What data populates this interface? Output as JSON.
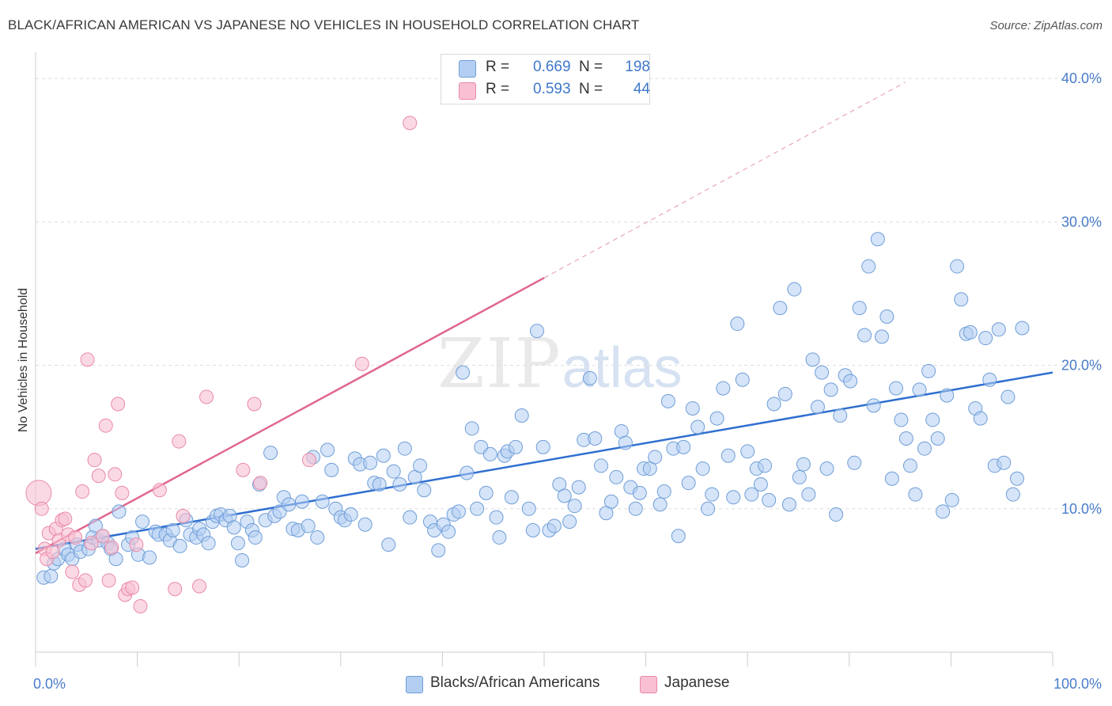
{
  "title": "BLACK/AFRICAN AMERICAN VS JAPANESE NO VEHICLES IN HOUSEHOLD CORRELATION CHART",
  "source": "Source: ZipAtlas.com",
  "watermark": {
    "left": "ZIP",
    "right": "atlas"
  },
  "legend": {
    "rows": [
      {
        "r_label": "R =",
        "r_value": "0.669",
        "n_label": "N =",
        "n_value": "198",
        "color": "#b3cef2"
      },
      {
        "r_label": "R =",
        "r_value": "0.593",
        "n_label": "N =",
        "n_value": "44",
        "color": "#f8c0d2"
      }
    ]
  },
  "bottom_legend": [
    {
      "label": "Blacks/African Americans",
      "color": "#b3cef2"
    },
    {
      "label": "Japanese",
      "color": "#f8c0d2"
    }
  ],
  "chart_data": {
    "type": "scatter",
    "ylabel": "No Vehicles in Household",
    "xlabel": "",
    "xlim": [
      0,
      100
    ],
    "ylim": [
      0,
      41.5
    ],
    "x_tick_labels": [
      {
        "value": 0,
        "label": "0.0%"
      },
      {
        "value": 100,
        "label": "100.0%"
      }
    ],
    "y_tick_labels": [
      {
        "value": 10,
        "label": "10.0%"
      },
      {
        "value": 20,
        "label": "20.0%"
      },
      {
        "value": 30,
        "label": "30.0%"
      },
      {
        "value": 40,
        "label": "40.0%"
      }
    ],
    "grid": "horizontal dashed",
    "colors": {
      "blue_fill": "#b3cef2",
      "blue_stroke": "#6f9ed8",
      "blue_line": "#2f6fd0",
      "pink_fill": "#f8c0d2",
      "pink_stroke": "#e98aa8",
      "pink_line": "#e0668f"
    },
    "series": [
      {
        "name": "Blacks/African Americans",
        "trend": {
          "x0": 0,
          "y0": 7.2,
          "x1": 100,
          "y1": 19.5
        },
        "points": [
          [
            0.8,
            5.2
          ],
          [
            1.5,
            5.3
          ],
          [
            1.8,
            6.2
          ],
          [
            2.2,
            6.5
          ],
          [
            2.8,
            7.2
          ],
          [
            3.2,
            6.8
          ],
          [
            3.6,
            6.5
          ],
          [
            4.1,
            7.5
          ],
          [
            4.4,
            7.0
          ],
          [
            5.2,
            7.2
          ],
          [
            5.6,
            8.0
          ],
          [
            5.9,
            8.8
          ],
          [
            6.2,
            7.8
          ],
          [
            6.6,
            8.1
          ],
          [
            7.1,
            7.6
          ],
          [
            7.4,
            7.2
          ],
          [
            7.9,
            6.5
          ],
          [
            8.2,
            9.8
          ],
          [
            9.1,
            7.5
          ],
          [
            9.5,
            8.0
          ],
          [
            10.1,
            6.8
          ],
          [
            10.5,
            9.1
          ],
          [
            11.2,
            6.6
          ],
          [
            11.8,
            8.4
          ],
          [
            12.1,
            8.2
          ],
          [
            12.8,
            8.2
          ],
          [
            13.2,
            7.8
          ],
          [
            13.5,
            8.5
          ],
          [
            14.2,
            7.4
          ],
          [
            14.8,
            9.2
          ],
          [
            15.2,
            8.2
          ],
          [
            15.8,
            8.0
          ],
          [
            16.1,
            8.6
          ],
          [
            16.5,
            8.2
          ],
          [
            17.0,
            7.6
          ],
          [
            17.4,
            9.1
          ],
          [
            17.8,
            9.5
          ],
          [
            18.2,
            9.6
          ],
          [
            18.7,
            9.2
          ],
          [
            19.1,
            9.5
          ],
          [
            19.5,
            8.7
          ],
          [
            19.9,
            7.6
          ],
          [
            20.3,
            6.4
          ],
          [
            20.8,
            9.1
          ],
          [
            21.3,
            8.5
          ],
          [
            21.6,
            8.0
          ],
          [
            22.0,
            11.7
          ],
          [
            22.6,
            9.2
          ],
          [
            23.1,
            13.9
          ],
          [
            23.5,
            9.5
          ],
          [
            24.0,
            9.8
          ],
          [
            24.4,
            10.8
          ],
          [
            24.9,
            10.3
          ],
          [
            25.3,
            8.6
          ],
          [
            25.8,
            8.5
          ],
          [
            26.2,
            10.5
          ],
          [
            26.8,
            8.8
          ],
          [
            27.3,
            13.6
          ],
          [
            27.7,
            8.0
          ],
          [
            28.2,
            10.5
          ],
          [
            28.7,
            14.1
          ],
          [
            29.1,
            12.7
          ],
          [
            29.5,
            10.0
          ],
          [
            30.0,
            9.4
          ],
          [
            30.4,
            9.2
          ],
          [
            31.0,
            9.6
          ],
          [
            31.4,
            13.5
          ],
          [
            31.9,
            13.1
          ],
          [
            32.4,
            8.9
          ],
          [
            32.9,
            13.2
          ],
          [
            33.3,
            11.8
          ],
          [
            33.8,
            11.7
          ],
          [
            34.2,
            13.7
          ],
          [
            34.7,
            7.5
          ],
          [
            35.2,
            12.6
          ],
          [
            35.8,
            11.7
          ],
          [
            36.3,
            14.2
          ],
          [
            36.8,
            9.4
          ],
          [
            37.3,
            12.2
          ],
          [
            37.8,
            13.0
          ],
          [
            38.2,
            11.3
          ],
          [
            38.8,
            9.1
          ],
          [
            39.2,
            8.5
          ],
          [
            39.6,
            7.1
          ],
          [
            40.1,
            8.9
          ],
          [
            40.6,
            8.4
          ],
          [
            41.1,
            9.6
          ],
          [
            41.6,
            9.8
          ],
          [
            42.0,
            19.5
          ],
          [
            42.4,
            12.5
          ],
          [
            42.9,
            15.6
          ],
          [
            43.4,
            10.0
          ],
          [
            43.8,
            14.3
          ],
          [
            44.3,
            11.1
          ],
          [
            44.7,
            13.8
          ],
          [
            45.3,
            9.4
          ],
          [
            45.6,
            8.0
          ],
          [
            46.1,
            13.7
          ],
          [
            46.4,
            14.0
          ],
          [
            46.8,
            10.8
          ],
          [
            47.2,
            14.3
          ],
          [
            47.8,
            16.5
          ],
          [
            48.5,
            10.0
          ],
          [
            48.9,
            8.5
          ],
          [
            49.3,
            22.4
          ],
          [
            49.9,
            14.3
          ],
          [
            50.5,
            8.5
          ],
          [
            51.0,
            8.8
          ],
          [
            51.5,
            11.7
          ],
          [
            52.0,
            10.9
          ],
          [
            52.5,
            9.1
          ],
          [
            53.0,
            10.2
          ],
          [
            53.4,
            11.5
          ],
          [
            53.9,
            14.8
          ],
          [
            54.5,
            19.1
          ],
          [
            55.0,
            14.9
          ],
          [
            55.6,
            13.0
          ],
          [
            56.1,
            9.7
          ],
          [
            56.6,
            10.5
          ],
          [
            57.1,
            12.2
          ],
          [
            57.6,
            15.4
          ],
          [
            58.0,
            14.6
          ],
          [
            58.5,
            11.5
          ],
          [
            59.0,
            10.0
          ],
          [
            59.4,
            11.1
          ],
          [
            59.8,
            12.8
          ],
          [
            60.4,
            12.8
          ],
          [
            60.9,
            13.6
          ],
          [
            61.4,
            10.3
          ],
          [
            61.8,
            11.2
          ],
          [
            62.2,
            17.5
          ],
          [
            62.7,
            14.2
          ],
          [
            63.2,
            8.1
          ],
          [
            63.7,
            14.3
          ],
          [
            64.2,
            11.8
          ],
          [
            64.6,
            17.0
          ],
          [
            65.1,
            15.7
          ],
          [
            65.6,
            12.8
          ],
          [
            66.1,
            10.0
          ],
          [
            66.5,
            11.0
          ],
          [
            67.0,
            16.3
          ],
          [
            67.6,
            18.4
          ],
          [
            68.1,
            13.7
          ],
          [
            68.6,
            10.8
          ],
          [
            69.0,
            22.9
          ],
          [
            69.5,
            19.0
          ],
          [
            70.0,
            14.0
          ],
          [
            70.4,
            11.0
          ],
          [
            70.9,
            12.8
          ],
          [
            71.3,
            11.7
          ],
          [
            71.7,
            13.0
          ],
          [
            72.1,
            10.6
          ],
          [
            72.6,
            17.3
          ],
          [
            73.2,
            24.0
          ],
          [
            73.7,
            18.0
          ],
          [
            74.1,
            10.3
          ],
          [
            74.6,
            25.3
          ],
          [
            75.1,
            12.2
          ],
          [
            75.5,
            13.1
          ],
          [
            76.0,
            11.0
          ],
          [
            76.4,
            20.4
          ],
          [
            76.9,
            17.1
          ],
          [
            77.3,
            19.5
          ],
          [
            77.8,
            12.8
          ],
          [
            78.2,
            18.3
          ],
          [
            78.7,
            9.6
          ],
          [
            79.1,
            16.5
          ],
          [
            79.6,
            19.3
          ],
          [
            80.1,
            18.9
          ],
          [
            80.5,
            13.2
          ],
          [
            81.0,
            24.0
          ],
          [
            81.5,
            22.1
          ],
          [
            81.9,
            26.9
          ],
          [
            82.4,
            17.2
          ],
          [
            82.8,
            28.8
          ],
          [
            83.2,
            22.0
          ],
          [
            83.7,
            23.4
          ],
          [
            84.2,
            12.1
          ],
          [
            84.6,
            18.4
          ],
          [
            85.1,
            16.2
          ],
          [
            85.6,
            14.9
          ],
          [
            86.0,
            13.0
          ],
          [
            86.5,
            11.0
          ],
          [
            86.9,
            18.3
          ],
          [
            87.4,
            14.2
          ],
          [
            87.8,
            19.6
          ],
          [
            88.2,
            16.2
          ],
          [
            88.7,
            14.9
          ],
          [
            89.2,
            9.8
          ],
          [
            89.6,
            17.9
          ],
          [
            90.1,
            10.6
          ],
          [
            90.6,
            26.9
          ],
          [
            91.0,
            24.6
          ],
          [
            91.5,
            22.2
          ],
          [
            91.9,
            22.3
          ],
          [
            92.4,
            17.0
          ],
          [
            92.9,
            16.3
          ],
          [
            93.4,
            21.9
          ],
          [
            93.8,
            19.0
          ],
          [
            94.3,
            13.0
          ],
          [
            94.7,
            22.5
          ],
          [
            95.2,
            13.2
          ],
          [
            95.6,
            17.8
          ],
          [
            96.1,
            11.0
          ],
          [
            96.5,
            12.1
          ],
          [
            97.0,
            22.6
          ]
        ]
      },
      {
        "name": "Japanese",
        "trend": {
          "x0": 0,
          "y0": 6.9,
          "x1": 50,
          "y1": 26.1
        },
        "points": [
          [
            0.3,
            11.1
          ],
          [
            0.6,
            10.0
          ],
          [
            0.9,
            7.2
          ],
          [
            1.1,
            6.5
          ],
          [
            1.3,
            8.3
          ],
          [
            1.7,
            7.0
          ],
          [
            2.0,
            8.6
          ],
          [
            2.3,
            7.8
          ],
          [
            2.6,
            9.2
          ],
          [
            2.9,
            9.3
          ],
          [
            3.2,
            8.2
          ],
          [
            3.6,
            5.6
          ],
          [
            3.9,
            8.0
          ],
          [
            4.3,
            4.7
          ],
          [
            4.6,
            11.2
          ],
          [
            4.9,
            5.0
          ],
          [
            5.1,
            20.4
          ],
          [
            5.5,
            7.6
          ],
          [
            5.8,
            13.4
          ],
          [
            6.2,
            12.3
          ],
          [
            6.6,
            8.1
          ],
          [
            6.9,
            15.8
          ],
          [
            7.2,
            5.0
          ],
          [
            7.5,
            7.3
          ],
          [
            7.8,
            12.4
          ],
          [
            8.1,
            17.3
          ],
          [
            8.5,
            11.1
          ],
          [
            8.8,
            4.0
          ],
          [
            9.1,
            4.4
          ],
          [
            9.5,
            4.5
          ],
          [
            9.9,
            7.5
          ],
          [
            10.3,
            3.2
          ],
          [
            12.2,
            11.3
          ],
          [
            13.7,
            4.4
          ],
          [
            14.1,
            14.7
          ],
          [
            14.5,
            9.5
          ],
          [
            16.1,
            4.6
          ],
          [
            16.8,
            17.8
          ],
          [
            20.4,
            12.7
          ],
          [
            21.5,
            17.3
          ],
          [
            22.1,
            11.8
          ],
          [
            26.9,
            13.4
          ],
          [
            32.1,
            20.1
          ],
          [
            36.8,
            36.9
          ]
        ]
      }
    ]
  }
}
